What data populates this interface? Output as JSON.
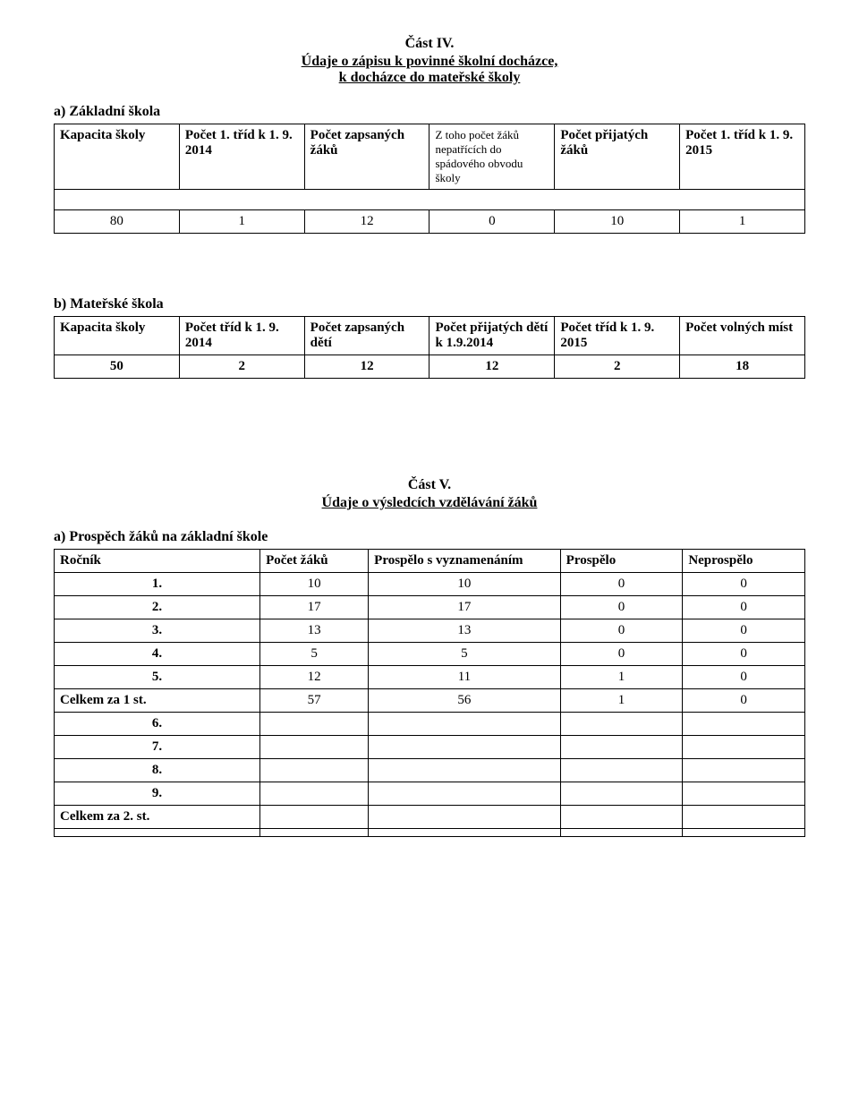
{
  "section4": {
    "title": "Část IV.",
    "subtitle_line1": "Údaje o zápisu k povinné školní docházce,",
    "subtitle_line2": "k docházce do mateřské školy",
    "a_label": "a)  Základní škola",
    "table_a": {
      "headers": [
        "Kapacita školy",
        "Počet 1. tříd k 1. 9. 2014",
        "Počet zapsaných žáků",
        "Z toho počet žáků nepatřících do spádového obvodu školy",
        "Počet přijatých žáků",
        "Počet 1. tříd k 1. 9. 2015"
      ],
      "row": [
        "80",
        "1",
        "12",
        "0",
        "10",
        "1"
      ]
    },
    "b_label": "b)  Mateřské škola",
    "table_b": {
      "headers": [
        "Kapacita školy",
        "Počet tříd k 1. 9. 2014",
        "Počet zapsaných dětí",
        "Počet přijatých dětí k 1.9.2014",
        "Počet tříd k 1. 9. 2015",
        "Počet volných míst"
      ],
      "row": [
        "50",
        "2",
        "12",
        "12",
        "2",
        "18"
      ]
    }
  },
  "section5": {
    "title": "Část V.",
    "subtitle": "Údaje o výsledcích vzdělávání žáků",
    "a_label": "a)  Prospěch žáků na základní škole",
    "table": {
      "columns": [
        "Ročník",
        "Počet žáků",
        "Prospělo s vyznamenáním",
        "Prospělo",
        "Neprospělo"
      ],
      "rows": [
        [
          "1.",
          "10",
          "10",
          "0",
          "0"
        ],
        [
          "2.",
          "17",
          "17",
          "0",
          "0"
        ],
        [
          "3.",
          "13",
          "13",
          "0",
          "0"
        ],
        [
          "4.",
          "5",
          "5",
          "0",
          "0"
        ],
        [
          "5.",
          "12",
          "11",
          "1",
          "0"
        ],
        [
          "Celkem za 1 st.",
          "57",
          "56",
          "1",
          "0"
        ],
        [
          "6.",
          "",
          "",
          "",
          ""
        ],
        [
          "7.",
          "",
          "",
          "",
          ""
        ],
        [
          "8.",
          "",
          "",
          "",
          ""
        ],
        [
          "9.",
          "",
          "",
          "",
          ""
        ],
        [
          "Celkem za 2. st.",
          "",
          "",
          "",
          ""
        ],
        [
          "",
          "",
          "",
          "",
          ""
        ]
      ]
    }
  }
}
